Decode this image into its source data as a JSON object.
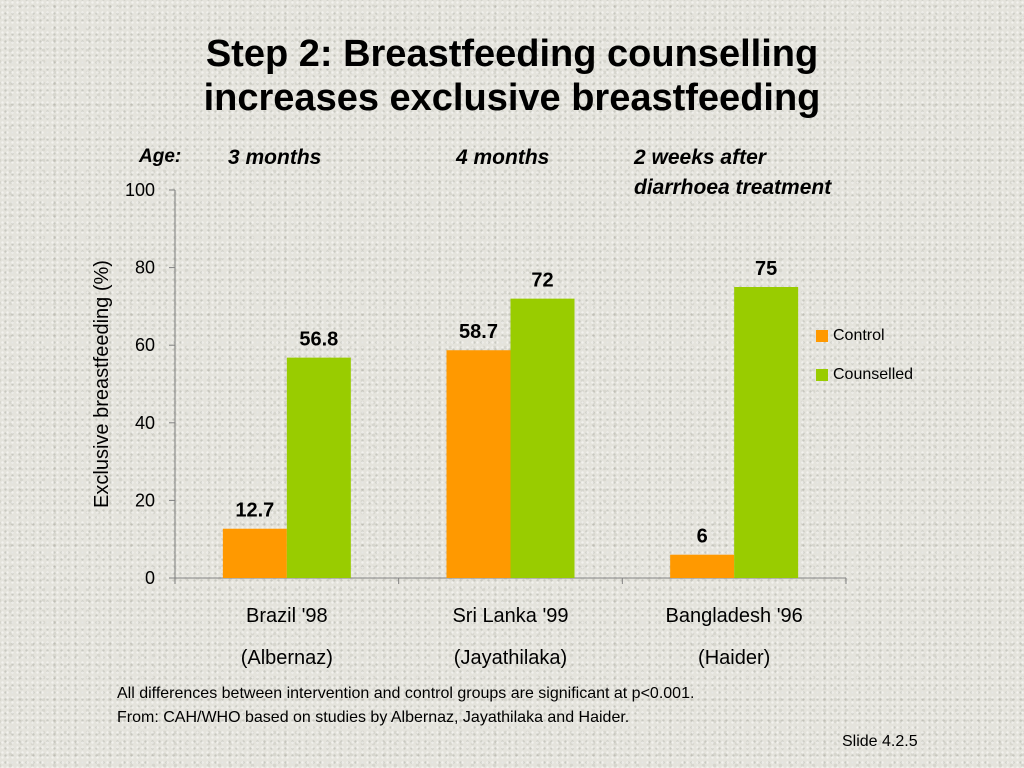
{
  "title": {
    "line1": "Step 2: Breastfeeding counselling",
    "line2": "increases exclusive breastfeeding"
  },
  "age_label": "Age:",
  "group_headers": [
    "3 months",
    "4 months",
    "2 weeks after",
    "diarrhoea treatment"
  ],
  "footnote": {
    "line1": "All differences between intervention and control groups are significant at p<0.001.",
    "line2": "From:  CAH/WHO based on studies by Albernaz, Jayathilaka and Haider."
  },
  "slide_number": "Slide 4.2.5",
  "colors": {
    "control": "#FF9900",
    "counselled": "#99CC00"
  },
  "chart_data": {
    "type": "bar",
    "categories": [
      "Brazil '98",
      "Sri Lanka '99",
      "Bangladesh '96"
    ],
    "category_sublabels": [
      "(Albernaz)",
      "(Jayathilaka)",
      "(Haider)"
    ],
    "series": [
      {
        "name": "Control",
        "values": [
          12.7,
          58.7,
          6
        ]
      },
      {
        "name": "Counselled",
        "values": [
          56.8,
          72,
          75
        ]
      }
    ],
    "ylabel": "Exclusive breastfeeding (%)",
    "ylim": [
      0,
      100
    ],
    "yticks": [
      0,
      20,
      40,
      60,
      80,
      100
    ],
    "grid": false,
    "legend_position": "right"
  }
}
